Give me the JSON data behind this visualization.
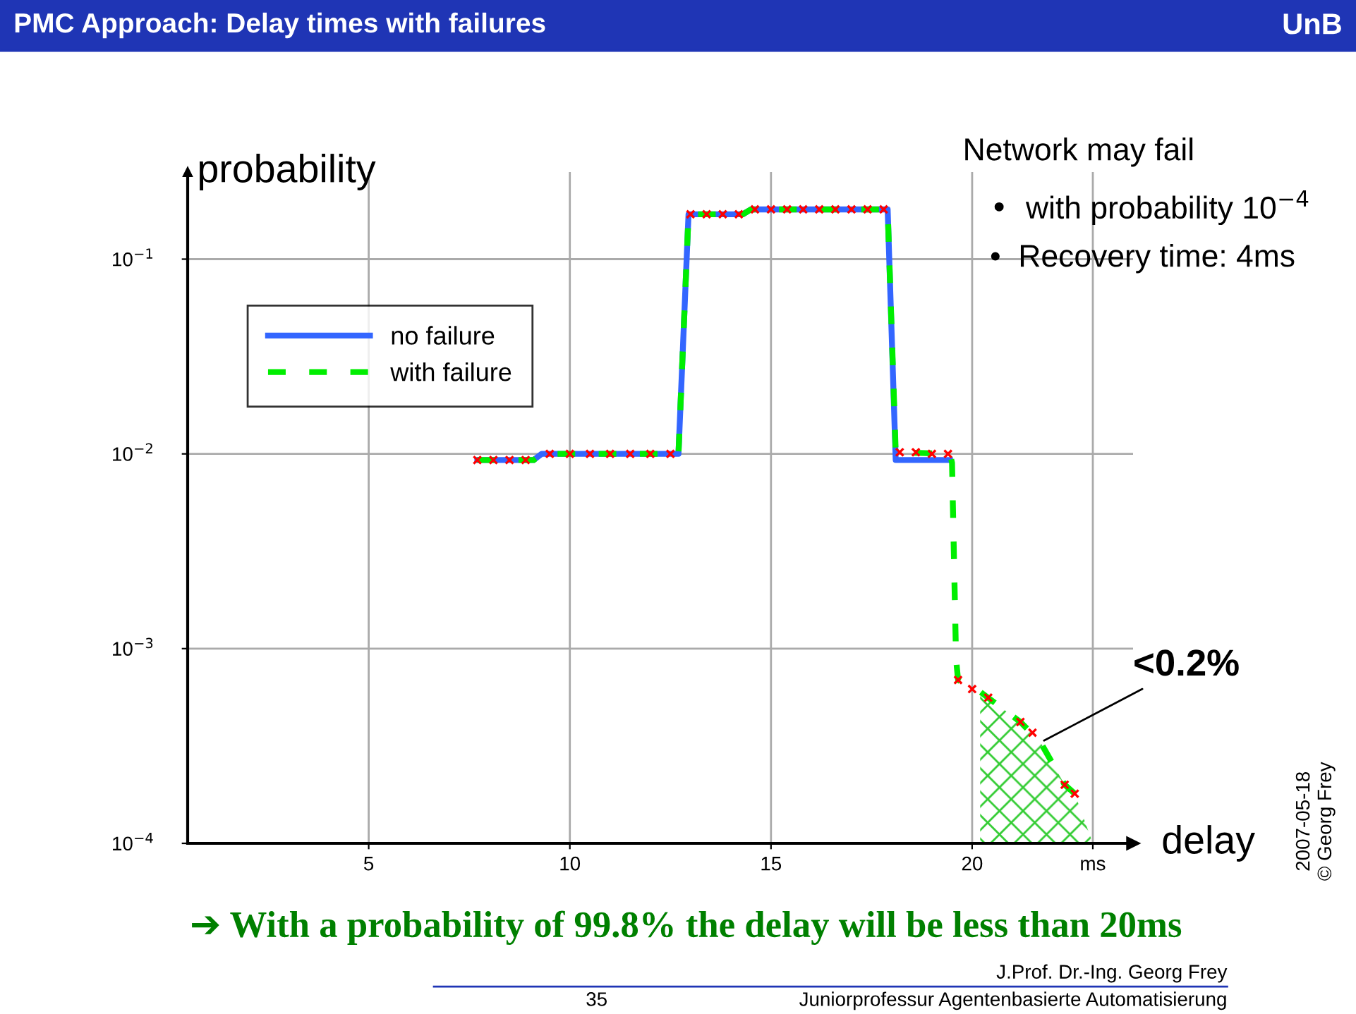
{
  "chart_data": {
    "type": "line",
    "title": "PMC Approach: Delay times with failures",
    "xlabel": "delay",
    "ylabel": "probability",
    "log": "y",
    "grid": true,
    "legend": "top left",
    "xlim": [
      0.5,
      24
    ],
    "xticks": [
      5,
      10,
      15,
      20,
      {
        "value": 23,
        "label": "ms"
      }
    ],
    "ylim": [
      0.0001,
      0.28
    ],
    "yticks": [
      {
        "value": 0.1,
        "label": "10$^{−1}$"
      },
      {
        "value": 0.01,
        "label": "10$^{−2}$"
      },
      {
        "value": 0.001,
        "label": "10$^{−3}$"
      },
      {
        "value": 0.0001,
        "label": "10$^{−4}$"
      }
    ],
    "series": [
      {
        "type": "area",
        "color": "#33cc33",
        "x": [
          20.2,
          21.2,
          21.7,
          22.3,
          22.55,
          23.0
        ],
        "values": [
          0.0006,
          0.00042,
          0.00033,
          0.0002,
          0.00018,
          0.0001
        ]
      },
      {
        "name": "no failure",
        "color": "#3366ff",
        "line_style": "solid",
        "x": [
          7.7,
          9.1,
          9.3,
          12.7,
          12.95,
          14.3,
          14.5,
          17.9,
          18.1,
          19.45
        ],
        "values": [
          0.0093,
          0.0093,
          0.01,
          0.01,
          0.17,
          0.17,
          0.18,
          0.18,
          0.0093,
          0.0093
        ]
      },
      {
        "name": "with failure",
        "color": "#00ee00",
        "line_style": "dashed",
        "x": [
          7.7,
          9.1,
          9.3,
          12.7,
          12.95,
          14.3,
          14.5,
          17.9,
          18.1,
          19.45,
          19.5,
          19.55,
          19.6,
          19.65,
          20.2,
          21.2,
          21.7,
          22.3,
          22.55
        ],
        "values": [
          0.0093,
          0.0093,
          0.01,
          0.01,
          0.17,
          0.17,
          0.18,
          0.18,
          0.0102,
          0.01,
          0.009,
          0.0028,
          0.00089,
          0.00069,
          0.0006,
          0.00042,
          0.00033,
          0.0002,
          0.00018
        ]
      },
      {
        "type": "scatter",
        "color": "#ff0000",
        "marker": "cross",
        "x": [
          7.7,
          8.1,
          8.5,
          8.9,
          9.5,
          10.0,
          10.5,
          11.0,
          11.5,
          12.0,
          12.5,
          13.0,
          13.4,
          13.8,
          14.2,
          14.6,
          15.0,
          15.4,
          15.8,
          16.2,
          16.6,
          17.0,
          17.4,
          17.8,
          18.2,
          18.6,
          19.0,
          19.4,
          19.65,
          20.0,
          20.4,
          21.2,
          21.5,
          22.3,
          22.55
        ],
        "values": [
          0.0093,
          0.0093,
          0.0093,
          0.0093,
          0.01,
          0.01,
          0.01,
          0.01,
          0.01,
          0.01,
          0.01,
          0.17,
          0.17,
          0.17,
          0.17,
          0.18,
          0.18,
          0.18,
          0.18,
          0.18,
          0.18,
          0.18,
          0.18,
          0.18,
          0.0102,
          0.0102,
          0.01,
          0.01,
          0.00069,
          0.00062,
          0.00056,
          0.00042,
          0.00037,
          0.0002,
          0.00018
        ]
      }
    ],
    "annotations": [
      "Network may fail",
      "•  with probability 10$^{−4}$",
      "•  Recovery time: 4ms",
      {
        "text": "<0.2%",
        "x": 21.7,
        "y": 0.00033
      },
      "➔ With a probability of 99.8% the delay will be less than 20ms",
      "UnB",
      "J.Prof. Dr.-Ing. Georg Frey",
      "35",
      "Juniorprofessur Agentenbasierte Automatisierung",
      "2007-05-18",
      "© Georg Frey"
    ]
  }
}
